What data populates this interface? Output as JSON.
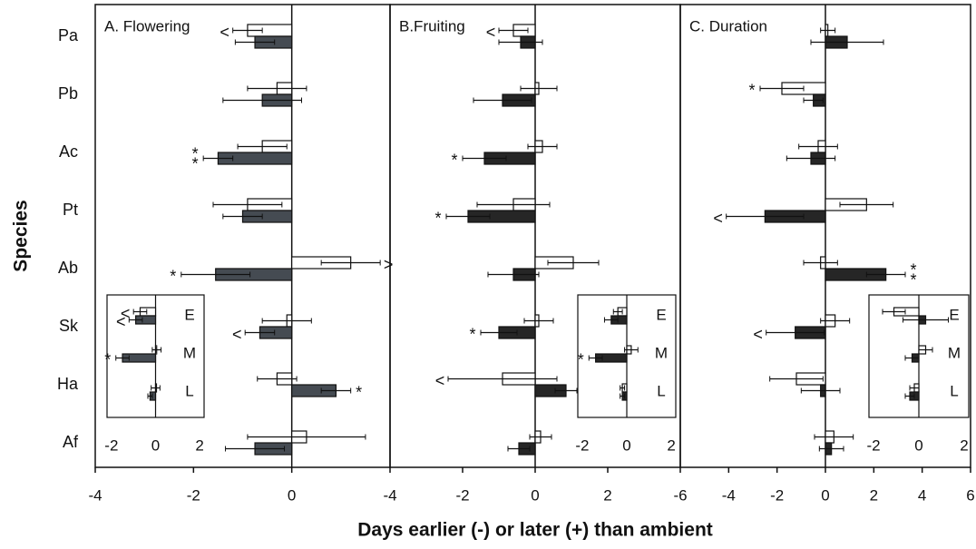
{
  "ylabel": "Species",
  "xlabel": "Days earlier (-) or later (+) than ambient",
  "chart_data": [
    {
      "type": "bar",
      "title": "A. Flowering",
      "categories": [
        "Pa",
        "Pb",
        "Ac",
        "Pt",
        "Ab",
        "Sk",
        "Ha",
        "Af"
      ],
      "xlim": [
        -4,
        2
      ],
      "xticks": [
        -4,
        -2,
        0
      ],
      "series": [
        {
          "color": "#ffffff",
          "values": [
            -0.9,
            -0.3,
            -0.6,
            -0.9,
            1.2,
            -0.1,
            -0.3,
            0.3
          ],
          "errors": [
            0.3,
            0.6,
            0.5,
            0.7,
            0.6,
            0.5,
            0.4,
            1.2
          ]
        },
        {
          "color": "#454b52",
          "values": [
            -0.75,
            -0.6,
            -1.5,
            -1.0,
            -1.55,
            -0.65,
            0.9,
            -0.75
          ],
          "errors": [
            0.4,
            0.8,
            0.3,
            0.4,
            0.7,
            0.3,
            0.3,
            0.6
          ]
        }
      ],
      "annotations": [
        {
          "text": "<",
          "series": 0,
          "index": 0
        },
        {
          "text": "**",
          "series": 1,
          "index": 2
        },
        {
          "text": ">",
          "series": 0,
          "index": 4
        },
        {
          "text": "*",
          "series": 1,
          "index": 4
        },
        {
          "text": "<",
          "series": 1,
          "index": 5
        },
        {
          "text": "*",
          "series": 1,
          "index": 6
        }
      ],
      "inset": {
        "categories": [
          "E",
          "M",
          "L"
        ],
        "xlim": [
          -2.2,
          2.2
        ],
        "xticks": [
          -2,
          0,
          2
        ],
        "series": [
          {
            "color": "#ffffff",
            "values": [
              -0.7,
              0.05,
              0.0
            ],
            "errors": [
              0.3,
              0.2,
              0.2
            ]
          },
          {
            "color": "#454b52",
            "values": [
              -0.9,
              -1.5,
              -0.25
            ],
            "errors": [
              0.3,
              0.3,
              0.1
            ]
          }
        ],
        "annotations": [
          {
            "text": "<",
            "series": 0,
            "index": 0
          },
          {
            "text": "<",
            "series": 1,
            "index": 0
          },
          {
            "text": "*",
            "series": 1,
            "index": 1
          }
        ]
      }
    },
    {
      "type": "bar",
      "title": "B.Fruiting",
      "xlim": [
        -4,
        4
      ],
      "xticks": [
        -4,
        -2,
        0,
        2
      ],
      "series": [
        {
          "color": "#ffffff",
          "values": [
            -0.6,
            0.1,
            0.2,
            -0.6,
            1.05,
            0.1,
            -0.9,
            0.15
          ],
          "errors": [
            0.4,
            0.5,
            0.4,
            1.0,
            0.7,
            0.4,
            1.5,
            0.3
          ]
        },
        {
          "color": "#262626",
          "values": [
            -0.4,
            -0.9,
            -1.4,
            -1.85,
            -0.6,
            -1.0,
            0.85,
            -0.45
          ],
          "errors": [
            0.6,
            0.8,
            0.6,
            0.6,
            0.7,
            0.5,
            0.3,
            0.3
          ]
        }
      ],
      "annotations": [
        {
          "text": "<",
          "series": 0,
          "index": 0
        },
        {
          "text": "*",
          "series": 1,
          "index": 2
        },
        {
          "text": "*",
          "series": 1,
          "index": 3
        },
        {
          "text": "*",
          "series": 1,
          "index": 5
        },
        {
          "text": "<",
          "series": 0,
          "index": 6
        },
        {
          "text": ">",
          "series": 1,
          "index": 6
        }
      ],
      "inset": {
        "categories": [
          "E",
          "M",
          "L"
        ],
        "xlim": [
          -2.2,
          2.2
        ],
        "xticks": [
          -2,
          0,
          2
        ],
        "series": [
          {
            "color": "#ffffff",
            "values": [
              -0.4,
              0.2,
              -0.2
            ],
            "errors": [
              0.2,
              0.3,
              0.1
            ]
          },
          {
            "color": "#262626",
            "values": [
              -0.7,
              -1.4,
              -0.2
            ],
            "errors": [
              0.3,
              0.3,
              0.1
            ]
          }
        ],
        "annotations": [
          {
            "text": "*",
            "series": 1,
            "index": 1
          }
        ]
      }
    },
    {
      "type": "bar",
      "title": "C. Duration",
      "xlim": [
        -6,
        6
      ],
      "xticks": [
        -6,
        -4,
        -2,
        0,
        2,
        4,
        6
      ],
      "series": [
        {
          "color": "#ffffff",
          "values": [
            0.1,
            -1.8,
            -0.3,
            1.7,
            -0.2,
            0.4,
            -1.2,
            0.35
          ],
          "errors": [
            0.3,
            0.9,
            0.8,
            1.1,
            0.7,
            0.6,
            1.1,
            0.8
          ]
        },
        {
          "color": "#262626",
          "values": [
            0.9,
            -0.5,
            -0.6,
            -2.5,
            2.5,
            -1.25,
            -0.2,
            0.25
          ],
          "errors": [
            1.5,
            0.4,
            1.0,
            1.6,
            0.8,
            1.2,
            0.8,
            0.5
          ]
        }
      ],
      "annotations": [
        {
          "text": "*",
          "series": 0,
          "index": 1
        },
        {
          "text": "<",
          "series": 1,
          "index": 3
        },
        {
          "text": "**",
          "series": 1,
          "index": 4
        },
        {
          "text": "<",
          "series": 1,
          "index": 5
        }
      ],
      "inset": {
        "categories": [
          "E",
          "M",
          "L"
        ],
        "xlim": [
          -2.2,
          2.2
        ],
        "xticks": [
          -2,
          0,
          2
        ],
        "series": [
          {
            "color": "#ffffff",
            "values": [
              -1.1,
              0.3,
              -0.2
            ],
            "errors": [
              0.5,
              0.3,
              0.2
            ]
          },
          {
            "color": "#262626",
            "values": [
              0.3,
              -0.3,
              -0.4
            ],
            "errors": [
              1.0,
              0.3,
              0.2
            ]
          }
        ],
        "annotations": []
      }
    }
  ]
}
